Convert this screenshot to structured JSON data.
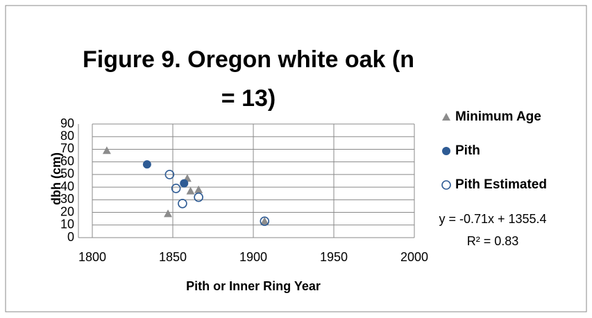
{
  "chart_data": {
    "type": "scatter",
    "title": "Figure 9. Oregon white oak (n = 13)",
    "x_label": "Pith or Inner Ring Year",
    "y_label": "dbh (cm)",
    "xlim": [
      1800,
      2000
    ],
    "xticks": [
      1800,
      1850,
      1900,
      1950,
      2000
    ],
    "ylim": [
      0,
      90
    ],
    "yticks": [
      0,
      10,
      20,
      30,
      40,
      50,
      60,
      70,
      80,
      90
    ],
    "grid": true,
    "legend": "right",
    "series": [
      {
        "name": "Minimum Age",
        "color": "#8c8c8c",
        "marker": "triangle",
        "x": [
          1809,
          1847,
          1859,
          1861,
          1866,
          1907
        ],
        "values": [
          69,
          19,
          47,
          37,
          38,
          13
        ]
      },
      {
        "name": "Pith",
        "color": "#2e5b94",
        "marker": "circle",
        "x": [
          1834,
          1857
        ],
        "values": [
          58,
          43
        ]
      },
      {
        "name": "Pith Estimated",
        "color": "#2e5b94",
        "marker": "open-circle",
        "x": [
          1848,
          1852,
          1856,
          1866,
          1907
        ],
        "values": [
          50,
          39,
          27,
          32,
          13
        ]
      }
    ],
    "annotations": [
      "y = -0.71x + 1355.4",
      "R² = 0.83"
    ]
  }
}
